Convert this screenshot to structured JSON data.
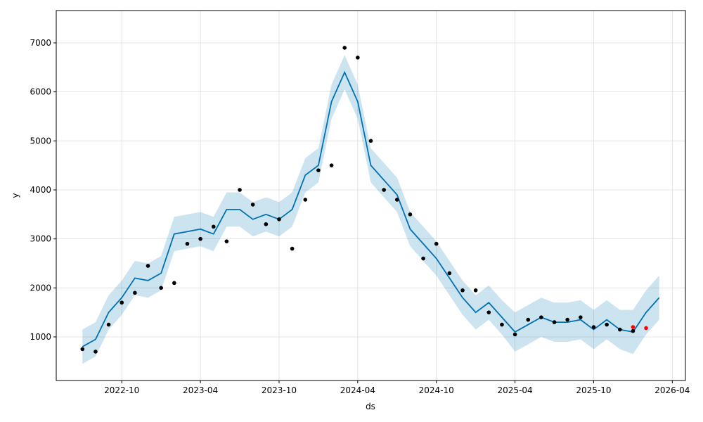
{
  "chart_data": {
    "type": "line",
    "xlabel": "ds",
    "ylabel": "y",
    "grid": true,
    "xlim": [
      "2022-05",
      "2026-05"
    ],
    "xticks": [
      "2022-10",
      "2023-04",
      "2023-10",
      "2024-04",
      "2024-10",
      "2025-04",
      "2025-10",
      "2026-04"
    ],
    "ylim": [
      110,
      7660
    ],
    "yticks": [
      1000,
      2000,
      3000,
      4000,
      5000,
      6000,
      7000
    ],
    "series": [
      {
        "kind": "band",
        "color": "#0072B2",
        "x": [
          "2022-07",
          "2022-08",
          "2022-09",
          "2022-10",
          "2022-11",
          "2022-12",
          "2023-01",
          "2023-02",
          "2023-03",
          "2023-04",
          "2023-05",
          "2023-06",
          "2023-07",
          "2023-08",
          "2023-09",
          "2023-10",
          "2023-11",
          "2023-12",
          "2024-01",
          "2024-02",
          "2024-03",
          "2024-04",
          "2024-05",
          "2024-06",
          "2024-07",
          "2024-08",
          "2024-09",
          "2024-10",
          "2024-11",
          "2024-12",
          "2025-01",
          "2025-02",
          "2025-03",
          "2025-04",
          "2025-05",
          "2025-06",
          "2025-07",
          "2025-08",
          "2025-09",
          "2025-10",
          "2025-11",
          "2025-12",
          "2026-01",
          "2026-02",
          "2026-03"
        ],
        "lower": [
          450,
          600,
          1150,
          1450,
          1850,
          1800,
          1950,
          2750,
          2800,
          2850,
          2750,
          3250,
          3250,
          3050,
          3150,
          3050,
          3250,
          3950,
          4150,
          5450,
          6050,
          5450,
          4150,
          3850,
          3550,
          2850,
          2550,
          2250,
          1850,
          1450,
          1150,
          1350,
          1050,
          700,
          850,
          1000,
          900,
          900,
          950,
          750,
          950,
          750,
          650,
          1050,
          1350
        ],
        "upper": [
          1150,
          1300,
          1850,
          2150,
          2550,
          2500,
          2650,
          3450,
          3500,
          3550,
          3450,
          3950,
          3950,
          3750,
          3850,
          3750,
          3950,
          4650,
          4850,
          6150,
          6750,
          6150,
          4850,
          4550,
          4250,
          3550,
          3250,
          2950,
          2550,
          2150,
          1850,
          2050,
          1750,
          1500,
          1650,
          1800,
          1700,
          1700,
          1750,
          1550,
          1750,
          1550,
          1550,
          1950,
          2250
        ]
      },
      {
        "kind": "line",
        "color": "#0072B2",
        "x": [
          "2022-07",
          "2022-08",
          "2022-09",
          "2022-10",
          "2022-11",
          "2022-12",
          "2023-01",
          "2023-02",
          "2023-03",
          "2023-04",
          "2023-05",
          "2023-06",
          "2023-07",
          "2023-08",
          "2023-09",
          "2023-10",
          "2023-11",
          "2023-12",
          "2024-01",
          "2024-02",
          "2024-03",
          "2024-04",
          "2024-05",
          "2024-06",
          "2024-07",
          "2024-08",
          "2024-09",
          "2024-10",
          "2024-11",
          "2024-12",
          "2025-01",
          "2025-02",
          "2025-03",
          "2025-04",
          "2025-05",
          "2025-06",
          "2025-07",
          "2025-08",
          "2025-09",
          "2025-10",
          "2025-11",
          "2025-12",
          "2026-01",
          "2026-02",
          "2026-03"
        ],
        "values": [
          800,
          950,
          1500,
          1800,
          2200,
          2150,
          2300,
          3100,
          3150,
          3200,
          3100,
          3600,
          3600,
          3400,
          3500,
          3400,
          3600,
          4300,
          4500,
          5800,
          6400,
          5800,
          4500,
          4200,
          3900,
          3200,
          2900,
          2600,
          2200,
          1800,
          1500,
          1700,
          1400,
          1100,
          1250,
          1400,
          1300,
          1300,
          1350,
          1150,
          1350,
          1150,
          1100,
          1500,
          1800
        ]
      },
      {
        "kind": "scatter",
        "color": "#000000",
        "x": [
          "2022-07",
          "2022-08",
          "2022-09",
          "2022-10",
          "2022-11",
          "2022-12",
          "2023-01",
          "2023-02",
          "2023-03",
          "2023-04",
          "2023-05",
          "2023-06",
          "2023-07",
          "2023-08",
          "2023-09",
          "2023-10",
          "2023-11",
          "2023-12",
          "2024-01",
          "2024-02",
          "2024-03",
          "2024-04",
          "2024-05",
          "2024-06",
          "2024-07",
          "2024-08",
          "2024-09",
          "2024-10",
          "2024-11",
          "2024-12",
          "2025-01",
          "2025-02",
          "2025-03",
          "2025-04",
          "2025-05",
          "2025-06",
          "2025-07",
          "2025-08",
          "2025-09",
          "2025-10",
          "2025-11",
          "2025-12",
          "2026-01"
        ],
        "values": [
          750,
          700,
          1250,
          1700,
          1900,
          2450,
          2000,
          2100,
          2900,
          3000,
          3250,
          2950,
          4000,
          3700,
          3300,
          3400,
          2800,
          3800,
          4400,
          4500,
          6900,
          6700,
          5000,
          4000,
          3800,
          3500,
          2600,
          2900,
          2300,
          1950,
          1950,
          1500,
          1250,
          1050,
          1350,
          1400,
          1300,
          1350,
          1400,
          1200,
          1250,
          1150,
          1120
        ]
      },
      {
        "kind": "scatter",
        "color": "#ff0000",
        "x": [
          "2026-01",
          "2026-02"
        ],
        "values": [
          1200,
          1180
        ]
      }
    ]
  }
}
